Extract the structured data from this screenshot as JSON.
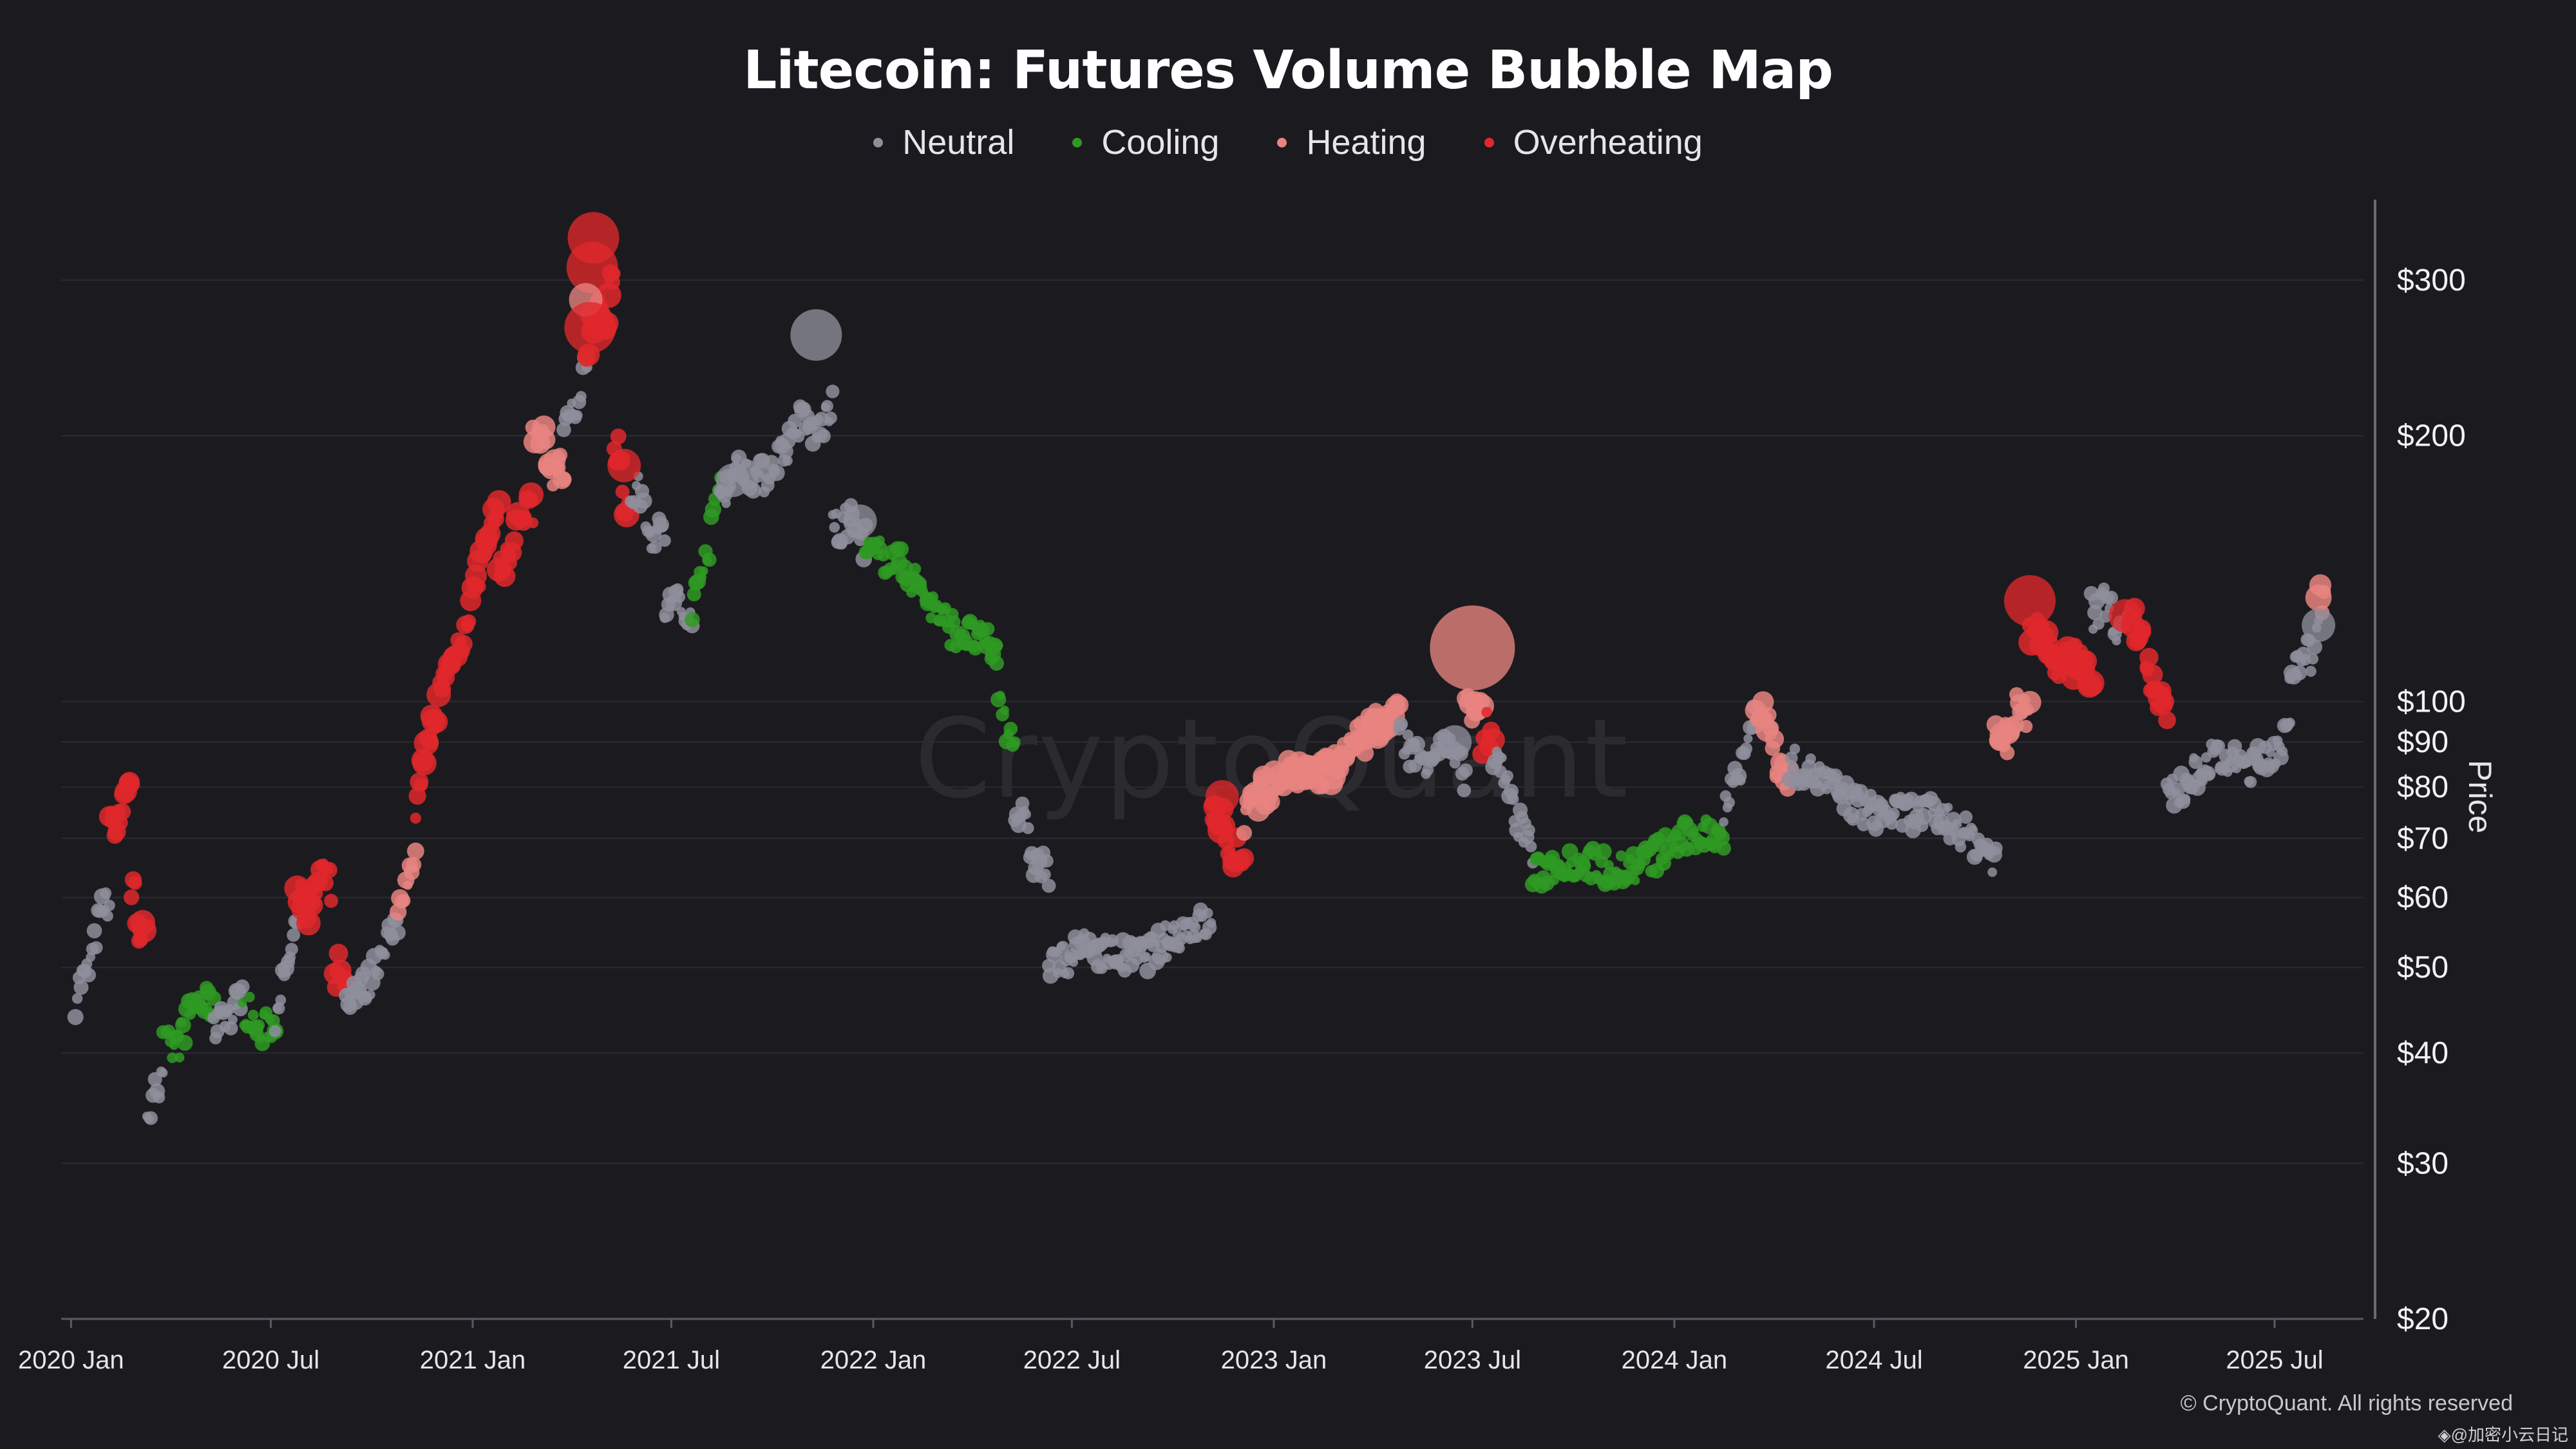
{
  "chart_data": {
    "type": "scatter",
    "title": "Litecoin: Futures Volume Bubble Map",
    "ylabel": "Price",
    "yscale": "log",
    "ylim": [
      20,
      370
    ],
    "xlim": [
      "2019-12-23",
      "2025-09-20"
    ],
    "grid": true,
    "legend_position": "top-center",
    "legend": [
      {
        "name": "Neutral",
        "color": "#8e8e9c"
      },
      {
        "name": "Cooling",
        "color": "#2f9a23"
      },
      {
        "name": "Heating",
        "color": "#e88480"
      },
      {
        "name": "Overheating",
        "color": "#e0282c"
      }
    ],
    "y_ticks": [
      {
        "value": 300,
        "label": "$300"
      },
      {
        "value": 200,
        "label": "$200"
      },
      {
        "value": 100,
        "label": "$100"
      },
      {
        "value": 90,
        "label": "$90"
      },
      {
        "value": 80,
        "label": "$80"
      },
      {
        "value": 70,
        "label": "$70"
      },
      {
        "value": 60,
        "label": "$60"
      },
      {
        "value": 50,
        "label": "$50"
      },
      {
        "value": 40,
        "label": "$40"
      },
      {
        "value": 30,
        "label": "$30"
      },
      {
        "value": 20,
        "label": "$20"
      }
    ],
    "x_ticks": [
      {
        "date": "2020-01-01",
        "label": "2020 Jan"
      },
      {
        "date": "2020-07-01",
        "label": "2020 Jul"
      },
      {
        "date": "2021-01-01",
        "label": "2021 Jan"
      },
      {
        "date": "2021-07-01",
        "label": "2021 Jul"
      },
      {
        "date": "2022-01-01",
        "label": "2022 Jan"
      },
      {
        "date": "2022-07-01",
        "label": "2022 Jul"
      },
      {
        "date": "2023-01-01",
        "label": "2023 Jan"
      },
      {
        "date": "2023-07-01",
        "label": "2023 Jul"
      },
      {
        "date": "2024-01-01",
        "label": "2024 Jan"
      },
      {
        "date": "2024-07-01",
        "label": "2024 Jul"
      },
      {
        "date": "2025-01-01",
        "label": "2025 Jan"
      },
      {
        "date": "2025-07-01",
        "label": "2025 Jul"
      }
    ],
    "segments": [
      {
        "status": "Neutral",
        "start": "2020-01-05",
        "end": "2020-02-05",
        "y0": 45,
        "y1": 60
      },
      {
        "status": "Overheating",
        "start": "2020-02-05",
        "end": "2020-02-25",
        "y0": 70,
        "y1": 80
      },
      {
        "status": "Overheating",
        "start": "2020-02-25",
        "end": "2020-03-08",
        "y0": 62,
        "y1": 52
      },
      {
        "status": "Neutral",
        "start": "2020-03-10",
        "end": "2020-03-25",
        "y0": 35,
        "y1": 38
      },
      {
        "status": "Cooling",
        "start": "2020-03-25",
        "end": "2020-05-10",
        "y0": 40,
        "y1": 47
      },
      {
        "status": "Neutral",
        "start": "2020-05-10",
        "end": "2020-06-05",
        "y0": 43,
        "y1": 46
      },
      {
        "status": "Cooling",
        "start": "2020-06-05",
        "end": "2020-07-05",
        "y0": 44,
        "y1": 42
      },
      {
        "status": "Neutral",
        "start": "2020-07-05",
        "end": "2020-07-25",
        "y0": 44,
        "y1": 55
      },
      {
        "status": "Overheating",
        "start": "2020-07-25",
        "end": "2020-08-25",
        "y0": 58,
        "y1": 63
      },
      {
        "status": "Overheating",
        "start": "2020-08-28",
        "end": "2020-09-08",
        "y0": 49,
        "y1": 48
      },
      {
        "status": "Neutral",
        "start": "2020-09-08",
        "end": "2020-10-25",
        "y0": 45,
        "y1": 55
      },
      {
        "status": "Heating",
        "start": "2020-10-25",
        "end": "2020-11-10",
        "y0": 60,
        "y1": 65
      },
      {
        "status": "Overheating",
        "start": "2020-11-10",
        "end": "2021-01-25",
        "y0": 75,
        "y1": 160
      },
      {
        "status": "Overheating",
        "start": "2021-01-25",
        "end": "2021-02-25",
        "y0": 140,
        "y1": 170
      },
      {
        "status": "Heating",
        "start": "2021-02-25",
        "end": "2021-03-25",
        "y0": 200,
        "y1": 180
      },
      {
        "status": "Neutral",
        "start": "2021-03-25",
        "end": "2021-04-15",
        "y0": 200,
        "y1": 240
      },
      {
        "status": "Overheating",
        "start": "2021-04-15",
        "end": "2021-05-10",
        "y0": 250,
        "y1": 300
      },
      {
        "status": "Overheating",
        "start": "2021-05-10",
        "end": "2021-05-25",
        "y0": 200,
        "y1": 160
      },
      {
        "status": "Neutral",
        "start": "2021-05-25",
        "end": "2021-06-25",
        "y0": 175,
        "y1": 150
      },
      {
        "status": "Neutral",
        "start": "2021-06-25",
        "end": "2021-07-20",
        "y0": 130,
        "y1": 125
      },
      {
        "status": "Cooling",
        "start": "2021-07-20",
        "end": "2021-08-15",
        "y0": 125,
        "y1": 175
      },
      {
        "status": "Neutral",
        "start": "2021-08-15",
        "end": "2021-10-15",
        "y0": 175,
        "y1": 190
      },
      {
        "status": "Neutral",
        "start": "2021-10-15",
        "end": "2021-11-25",
        "y0": 200,
        "y1": 210
      },
      {
        "status": "Neutral",
        "start": "2021-11-25",
        "end": "2021-12-25",
        "y0": 160,
        "y1": 155
      },
      {
        "status": "Cooling",
        "start": "2021-12-25",
        "end": "2022-04-25",
        "y0": 150,
        "y1": 110
      },
      {
        "status": "Cooling",
        "start": "2022-04-25",
        "end": "2022-05-10",
        "y0": 100,
        "y1": 90
      },
      {
        "status": "Neutral",
        "start": "2022-05-10",
        "end": "2022-06-10",
        "y0": 75,
        "y1": 62
      },
      {
        "status": "Neutral",
        "start": "2022-06-10",
        "end": "2022-11-05",
        "y0": 50,
        "y1": 55
      },
      {
        "status": "Overheating",
        "start": "2022-11-05",
        "end": "2022-12-05",
        "y0": 75,
        "y1": 65
      },
      {
        "status": "Heating",
        "start": "2022-12-05",
        "end": "2023-04-25",
        "y0": 75,
        "y1": 95
      },
      {
        "status": "Neutral",
        "start": "2023-04-25",
        "end": "2023-06-25",
        "y0": 90,
        "y1": 85
      },
      {
        "status": "Heating",
        "start": "2023-06-25",
        "end": "2023-07-10",
        "y0": 100,
        "y1": 95
      },
      {
        "status": "Overheating",
        "start": "2023-07-10",
        "end": "2023-07-20",
        "y0": 93,
        "y1": 91
      },
      {
        "status": "Neutral",
        "start": "2023-07-20",
        "end": "2023-08-25",
        "y0": 88,
        "y1": 66
      },
      {
        "status": "Cooling",
        "start": "2023-08-25",
        "end": "2024-02-15",
        "y0": 63,
        "y1": 70
      },
      {
        "status": "Neutral",
        "start": "2024-02-15",
        "end": "2024-03-15",
        "y0": 75,
        "y1": 95
      },
      {
        "status": "Heating",
        "start": "2024-03-15",
        "end": "2024-04-15",
        "y0": 100,
        "y1": 80
      },
      {
        "status": "Neutral",
        "start": "2024-04-15",
        "end": "2024-10-20",
        "y0": 83,
        "y1": 68
      },
      {
        "status": "Heating",
        "start": "2024-10-20",
        "end": "2024-11-20",
        "y0": 90,
        "y1": 100
      },
      {
        "status": "Overheating",
        "start": "2024-11-20",
        "end": "2025-01-15",
        "y0": 120,
        "y1": 105
      },
      {
        "status": "Neutral",
        "start": "2025-01-15",
        "end": "2025-02-20",
        "y0": 130,
        "y1": 120
      },
      {
        "status": "Overheating",
        "start": "2025-02-20",
        "end": "2025-03-25",
        "y0": 125,
        "y1": 95
      },
      {
        "status": "Neutral",
        "start": "2025-03-25",
        "end": "2025-07-15",
        "y0": 80,
        "y1": 90
      },
      {
        "status": "Neutral",
        "start": "2025-07-15",
        "end": "2025-08-10",
        "y0": 105,
        "y1": 120
      },
      {
        "status": "Heating",
        "start": "2025-08-10",
        "end": "2025-08-15",
        "y0": 130,
        "y1": 130
      }
    ],
    "bubbles": [
      {
        "status": "Overheating",
        "date": "2021-04-21",
        "y": 335,
        "size": "large"
      },
      {
        "status": "Overheating",
        "date": "2021-04-20",
        "y": 310,
        "size": "large"
      },
      {
        "status": "Heating",
        "date": "2021-04-14",
        "y": 285,
        "size": "medium"
      },
      {
        "status": "Overheating",
        "date": "2021-04-18",
        "y": 265,
        "size": "large"
      },
      {
        "status": "Overheating",
        "date": "2021-05-19",
        "y": 185,
        "size": "medium"
      },
      {
        "status": "Neutral",
        "date": "2021-11-10",
        "y": 260,
        "size": "large"
      },
      {
        "status": "Neutral",
        "date": "2021-08-26",
        "y": 178,
        "size": "medium"
      },
      {
        "status": "Neutral",
        "date": "2021-12-20",
        "y": 160,
        "size": "medium"
      },
      {
        "status": "Heating",
        "date": "2023-07-01",
        "y": 115,
        "size": "xlarge"
      },
      {
        "status": "Neutral",
        "date": "2023-06-15",
        "y": 90,
        "size": "medium"
      },
      {
        "status": "Overheating",
        "date": "2022-11-15",
        "y": 78,
        "size": "medium"
      },
      {
        "status": "Overheating",
        "date": "2024-11-20",
        "y": 130,
        "size": "large"
      },
      {
        "status": "Overheating",
        "date": "2025-02-15",
        "y": 125,
        "size": "medium"
      },
      {
        "status": "Neutral",
        "date": "2025-08-10",
        "y": 122,
        "size": "medium"
      }
    ]
  },
  "axis": {
    "y_title": "Price"
  },
  "watermark": "CryptoQuant",
  "credit": "© CryptoQuant. All rights reserved",
  "corner_tag": "◈@加密小云日记"
}
